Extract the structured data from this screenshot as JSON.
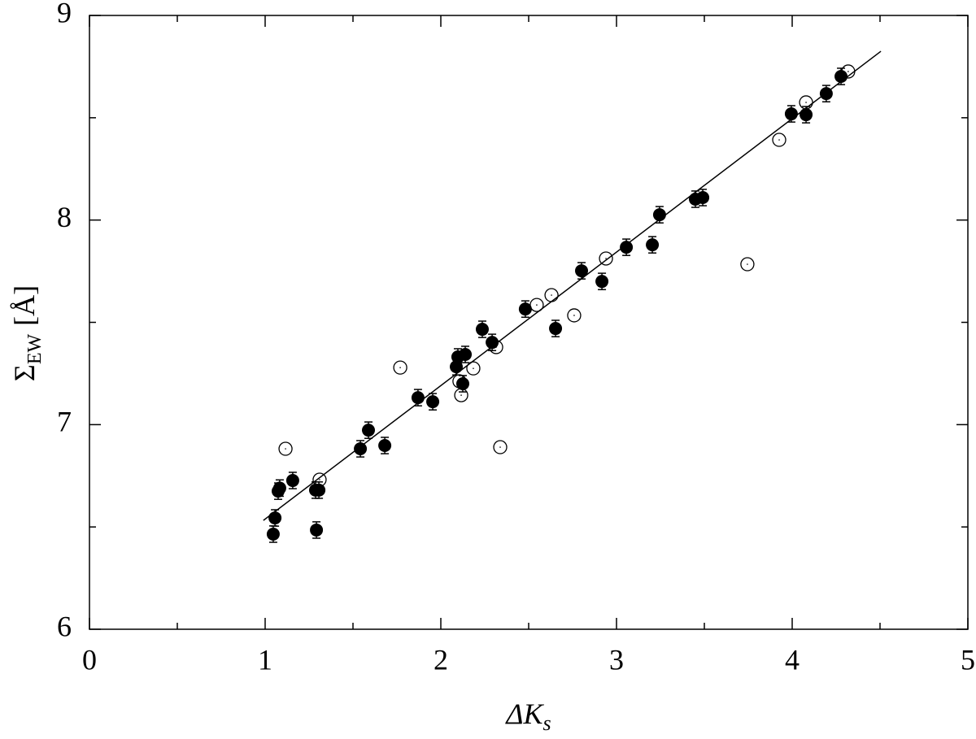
{
  "chart_data": {
    "type": "scatter",
    "xlabel_parts": [
      "ΔK",
      "s"
    ],
    "ylabel_parts": [
      "Σ",
      "EW",
      "[Å]"
    ],
    "xlim": [
      0,
      5
    ],
    "ylim": [
      6,
      9
    ],
    "xticks": [
      0,
      1,
      2,
      3,
      4,
      5
    ],
    "yticks": [
      6,
      7,
      8,
      9
    ],
    "xminor": [
      0.5,
      1.5,
      2.5,
      3.5,
      4.5
    ],
    "yminor": [
      6.5,
      7.5,
      8.5
    ],
    "series": [
      {
        "marker": "filled",
        "color": "#000000",
        "x": [
          1.046,
          1.056,
          1.074,
          1.083,
          1.157,
          1.287,
          1.306,
          1.292,
          1.542,
          1.588,
          1.681,
          1.87,
          1.954,
          2.088,
          2.097,
          2.139,
          2.125,
          2.236,
          2.292,
          2.481,
          2.653,
          2.801,
          2.917,
          3.056,
          3.245,
          3.204,
          3.449,
          3.491,
          3.995,
          4.079,
          4.194,
          4.278
        ],
        "values": [
          6.465,
          6.544,
          6.675,
          6.69,
          6.727,
          6.68,
          6.68,
          6.485,
          6.882,
          6.973,
          6.898,
          7.132,
          7.112,
          7.283,
          7.331,
          7.343,
          7.2,
          7.466,
          7.402,
          7.565,
          7.47,
          7.752,
          7.7,
          7.867,
          8.026,
          7.879,
          8.102,
          8.11,
          8.519,
          8.515,
          8.618,
          8.702
        ],
        "errors": [
          0.04,
          0.04,
          0.04,
          0.04,
          0.04,
          0.04,
          0.04,
          0.04,
          0.04,
          0.04,
          0.04,
          0.04,
          0.04,
          0.04,
          0.04,
          0.04,
          0.04,
          0.04,
          0.04,
          0.04,
          0.04,
          0.04,
          0.04,
          0.04,
          0.04,
          0.04,
          0.04,
          0.04,
          0.04,
          0.04,
          0.04,
          0.04
        ]
      },
      {
        "marker": "open",
        "color": "#000000",
        "x": [
          1.116,
          1.31,
          1.769,
          2.106,
          2.116,
          2.185,
          2.315,
          2.338,
          2.546,
          2.63,
          2.759,
          2.94,
          3.745,
          3.926,
          4.079,
          4.319
        ],
        "values": [
          6.882,
          6.731,
          7.279,
          7.212,
          7.144,
          7.275,
          7.379,
          6.89,
          7.585,
          7.633,
          7.534,
          7.812,
          7.784,
          8.392,
          8.575,
          8.726
        ]
      },
      {
        "marker": "line",
        "color": "#000000",
        "x": [
          0.99,
          4.505
        ],
        "values": [
          6.532,
          8.825
        ]
      }
    ]
  }
}
